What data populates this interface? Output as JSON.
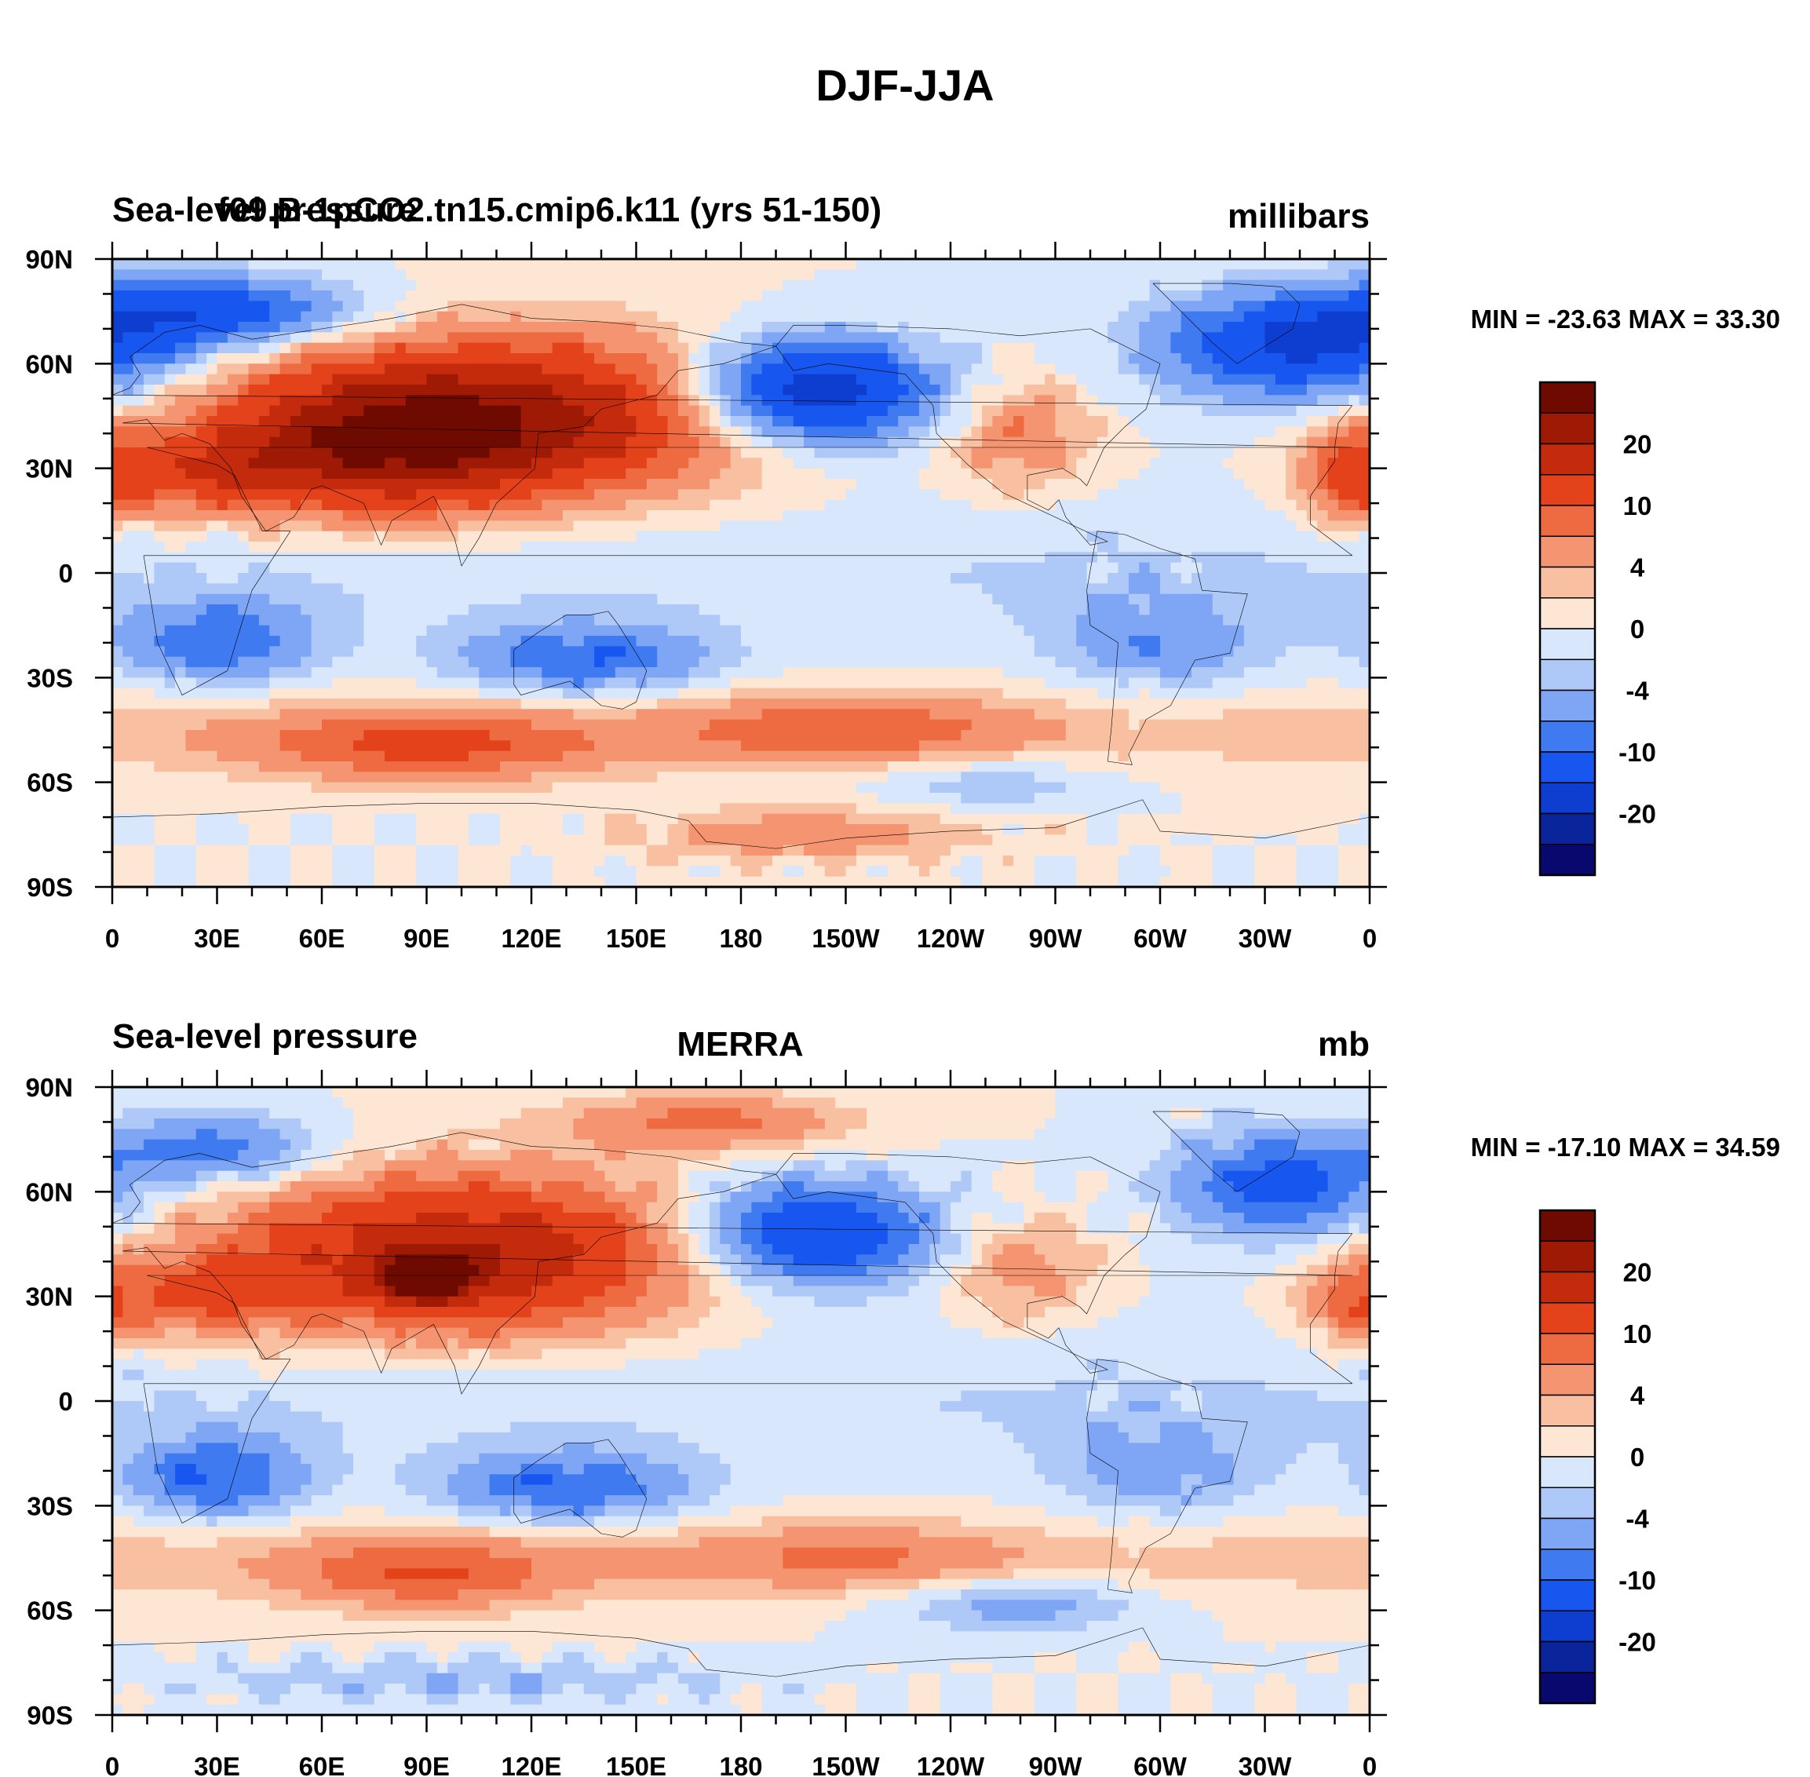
{
  "title": "DJF-JJA",
  "panels": [
    {
      "left_label": "Sea-level pressure",
      "center_label": "f09.B-1pCO2.tn15.cmip6.k11 (yrs 51-150)",
      "right_label": "millibars",
      "minmax": "MIN = -23.63 MAX =  33.30",
      "anomaly_blobs": [
        {
          "lon": 110,
          "lat": 45,
          "rlon": 70,
          "rlat": 22,
          "v": 22
        },
        {
          "lon": 75,
          "lat": 35,
          "rlon": 45,
          "rlat": 18,
          "v": 14
        },
        {
          "lon": 25,
          "lat": 28,
          "rlon": 30,
          "rlat": 12,
          "v": 9
        },
        {
          "lon": 355,
          "lat": 28,
          "rlon": 14,
          "rlat": 14,
          "v": 10
        },
        {
          "lon": 260,
          "lat": 40,
          "rlon": 20,
          "rlat": 15,
          "v": 7
        },
        {
          "lon": 200,
          "lat": 52,
          "rlon": 35,
          "rlat": 15,
          "v": -21
        },
        {
          "lon": 340,
          "lat": 65,
          "rlon": 40,
          "rlat": 15,
          "v": -16
        },
        {
          "lon": 30,
          "lat": 75,
          "rlon": 40,
          "rlat": 10,
          "v": -13
        },
        {
          "lon": 30,
          "lat": -20,
          "rlon": 28,
          "rlat": 12,
          "v": -9
        },
        {
          "lon": 135,
          "lat": -25,
          "rlon": 35,
          "rlat": 10,
          "v": -10
        },
        {
          "lon": 300,
          "lat": -20,
          "rlon": 30,
          "rlat": 15,
          "v": -6
        },
        {
          "lon": 90,
          "lat": -50,
          "rlon": 50,
          "rlat": 10,
          "v": 9
        },
        {
          "lon": 210,
          "lat": -45,
          "rlon": 50,
          "rlat": 10,
          "v": 7
        },
        {
          "lon": 250,
          "lat": -60,
          "rlon": 35,
          "rlat": 8,
          "v": -4
        },
        {
          "lon": 200,
          "lat": -75,
          "rlon": 50,
          "rlat": 8,
          "v": 6
        }
      ]
    },
    {
      "left_label": "Sea-level pressure",
      "center_label": "MERRA",
      "right_label": "mb",
      "minmax": "MIN = -17.10 MAX =  34.59",
      "anomaly_blobs": [
        {
          "lon": 100,
          "lat": 42,
          "rlon": 65,
          "rlat": 22,
          "v": 20
        },
        {
          "lon": 90,
          "lat": 35,
          "rlon": 12,
          "rlat": 6,
          "v": 26
        },
        {
          "lon": 25,
          "lat": 30,
          "rlon": 30,
          "rlat": 12,
          "v": 8
        },
        {
          "lon": 170,
          "lat": 80,
          "rlon": 40,
          "rlat": 8,
          "v": 8
        },
        {
          "lon": 355,
          "lat": 28,
          "rlon": 14,
          "rlat": 12,
          "v": 7
        },
        {
          "lon": 260,
          "lat": 38,
          "rlon": 20,
          "rlat": 14,
          "v": 6
        },
        {
          "lon": 200,
          "lat": 48,
          "rlon": 35,
          "rlat": 15,
          "v": -16
        },
        {
          "lon": 335,
          "lat": 62,
          "rlon": 30,
          "rlat": 15,
          "v": -12
        },
        {
          "lon": 30,
          "lat": 72,
          "rlon": 30,
          "rlat": 10,
          "v": -9
        },
        {
          "lon": 30,
          "lat": -22,
          "rlon": 25,
          "rlat": 12,
          "v": -10
        },
        {
          "lon": 130,
          "lat": -25,
          "rlon": 35,
          "rlat": 10,
          "v": -10
        },
        {
          "lon": 300,
          "lat": -20,
          "rlon": 30,
          "rlat": 15,
          "v": -5
        },
        {
          "lon": 90,
          "lat": -50,
          "rlon": 40,
          "rlat": 10,
          "v": 8
        },
        {
          "lon": 210,
          "lat": -45,
          "rlon": 45,
          "rlat": 9,
          "v": 5
        },
        {
          "lon": 260,
          "lat": -58,
          "rlon": 35,
          "rlat": 8,
          "v": -6
        },
        {
          "lon": 100,
          "lat": -80,
          "rlon": 80,
          "rlat": 6,
          "v": -4
        }
      ]
    }
  ],
  "x_tick_labels": [
    "0",
    "30E",
    "60E",
    "90E",
    "120E",
    "150E",
    "180",
    "150W",
    "120W",
    "90W",
    "60W",
    "30W",
    "0"
  ],
  "y_tick_labels": [
    "90N",
    "60N",
    "30N",
    "0",
    "30S",
    "60S",
    "90S"
  ],
  "colorbar": {
    "levels": [
      -25,
      -20,
      -15,
      -10,
      -7,
      -4,
      -2,
      0,
      2,
      4,
      7,
      10,
      15,
      20,
      25
    ],
    "labels": [
      "20",
      "10",
      "4",
      "0",
      "-4",
      "-10",
      "-20"
    ],
    "colors": [
      "#08086e",
      "#0a249b",
      "#0d3ed0",
      "#1856f0",
      "#3f7af0",
      "#7ea6f5",
      "#aec8f8",
      "#d8e7fb",
      "#fde6d4",
      "#f8c0a0",
      "#f49470",
      "#ee6a40",
      "#e4421b",
      "#c42a0c",
      "#9e1a05",
      "#6e0a00"
    ]
  }
}
